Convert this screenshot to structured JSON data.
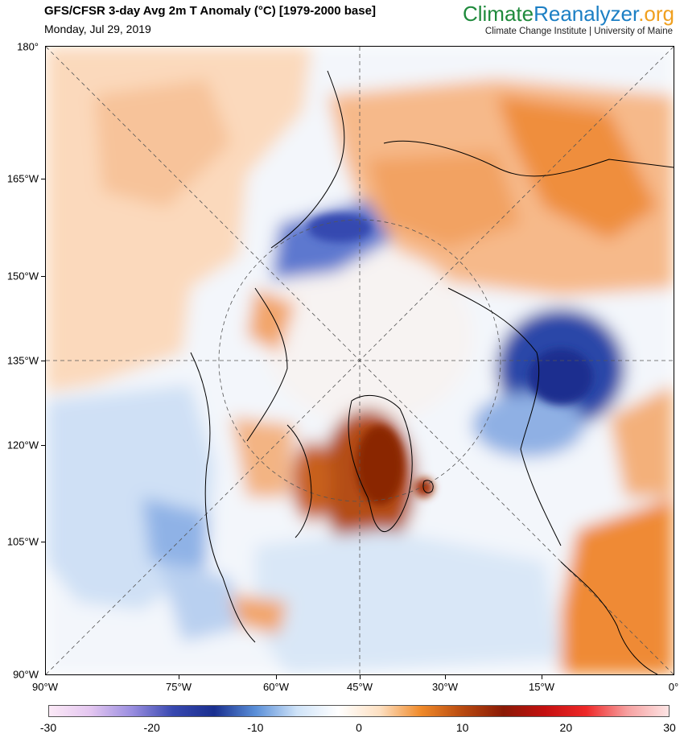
{
  "header": {
    "title": "GFS/CFSR 3-day Avg 2m T Anomaly (°C) [1979-2000 base]",
    "date": "Monday, Jul 29, 2019"
  },
  "brand": {
    "part1": "Climate",
    "part2": "Reanalyzer",
    "part3": ".org",
    "subtitle": "Climate Change Institute | University of Maine"
  },
  "map": {
    "projection": "north-polar-stereographic",
    "variable": "2m temperature anomaly",
    "y_axis_labels": [
      "180°",
      "165°W",
      "150°W",
      "135°W",
      "120°W",
      "105°W",
      "90°W"
    ],
    "x_axis_labels": [
      "90°W",
      "75°W",
      "60°W",
      "45°W",
      "30°W",
      "15°W",
      "0°"
    ]
  },
  "colorbar": {
    "min": -30,
    "max": 30,
    "labels": [
      "-30",
      "-20",
      "-10",
      "0",
      "10",
      "20",
      "30"
    ],
    "colors": [
      "#fbe9f6",
      "#e4c6f0",
      "#9a8ee0",
      "#3848b0",
      "#1a2f8f",
      "#5a8fd8",
      "#cfe3f8",
      "#ffffff",
      "#fde0c2",
      "#f08a2a",
      "#b84a10",
      "#8a1a06",
      "#c41010",
      "#ee2828",
      "#f6a0a0",
      "#fde4e4"
    ]
  },
  "legend_colors": {
    "land_outline": "#000000",
    "cold": "#1f3da0",
    "warm": "#d5601a"
  }
}
